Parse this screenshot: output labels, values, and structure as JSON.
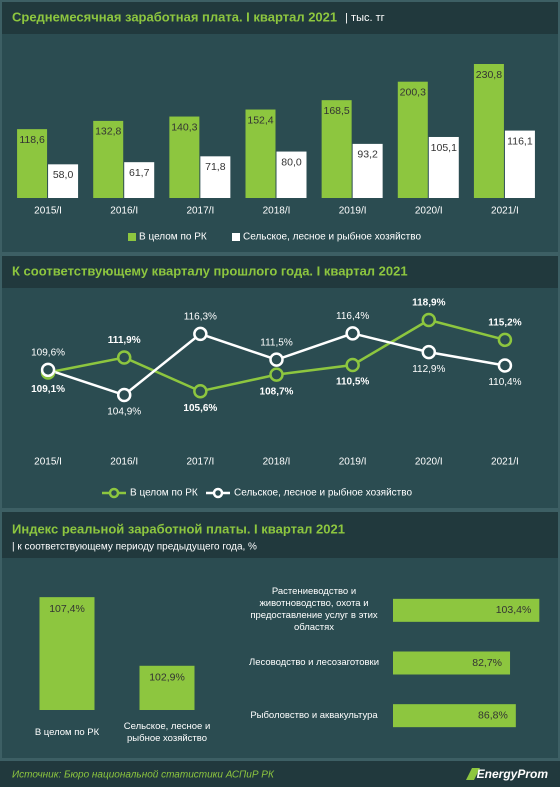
{
  "chart_data": [
    {
      "type": "bar",
      "title": "Среднемесячная заработная плата. I квартал 2021",
      "subtitle": "| тыс. тг",
      "categories": [
        "2015/I",
        "2016/I",
        "2017/I",
        "2018/I",
        "2019/I",
        "2020/I",
        "2021/I"
      ],
      "series": [
        {
          "name": "В целом по РК",
          "color": "#8dc63f",
          "values": [
            118.6,
            132.8,
            140.3,
            152.4,
            168.5,
            200.3,
            230.8
          ],
          "value_labels": [
            "118,6",
            "132,8",
            "140,3",
            "152,4",
            "168,5",
            "200,3",
            "230,8"
          ]
        },
        {
          "name": "Сельское, лесное и рыбное хозяйство",
          "color": "#ffffff",
          "values": [
            58.0,
            61.7,
            71.8,
            80.0,
            93.2,
            105.1,
            116.1
          ],
          "value_labels": [
            "58,0",
            "61,7",
            "71,8",
            "80,0",
            "93,2",
            "105,1",
            "116,1"
          ]
        }
      ],
      "legend": "bottom"
    },
    {
      "type": "line",
      "title": "К соответствующему кварталу прошлого года. I квартал 2021",
      "categories": [
        "2015/I",
        "2016/I",
        "2017/I",
        "2018/I",
        "2019/I",
        "2020/I",
        "2021/I"
      ],
      "series": [
        {
          "name": "В целом по РК",
          "color": "#8dc63f",
          "values": [
            109.1,
            111.9,
            105.6,
            108.7,
            110.5,
            118.9,
            115.2
          ],
          "value_labels": [
            "109,1%",
            "111,9%",
            "105,6%",
            "108,7%",
            "110,5%",
            "118,9%",
            "115,2%"
          ]
        },
        {
          "name": "Сельское, лесное и рыбное хозяйство",
          "color": "#ffffff",
          "values": [
            109.6,
            104.9,
            116.3,
            111.5,
            116.4,
            112.9,
            110.4
          ],
          "value_labels": [
            "109,6%",
            "104,9%",
            "116,3%",
            "111,5%",
            "116,4%",
            "112,9%",
            "110,4%"
          ]
        }
      ],
      "legend": "bottom"
    },
    {
      "type": "bar",
      "title": "Индекс реальной заработной платы. I квартал 2021",
      "subtitle": "| к соответствующему периоду предыдущего года, %",
      "categories": [
        "В целом по РК",
        "Сельское, лесное и рыбное хозяйство"
      ],
      "values": [
        107.4,
        102.9
      ],
      "value_labels": [
        "107,4%",
        "102,9%"
      ],
      "color": "#8dc63f",
      "ylim": [
        100,
        108
      ]
    },
    {
      "type": "barh",
      "categories": [
        "Растениеводство и животноводство, охота и предоставление услуг в этих областях",
        "Лесоводство и лесозаготовки",
        "Рыболовство и аквакультура"
      ],
      "values": [
        103.4,
        82.7,
        86.8
      ],
      "value_labels": [
        "103,4%",
        "82,7%",
        "86,8%"
      ],
      "color": "#8dc63f",
      "xlim": [
        0,
        106
      ]
    }
  ],
  "footer": {
    "source": "Источник: Бюро национальной статистики АСПиР РК",
    "brand": "EnergyProm"
  }
}
